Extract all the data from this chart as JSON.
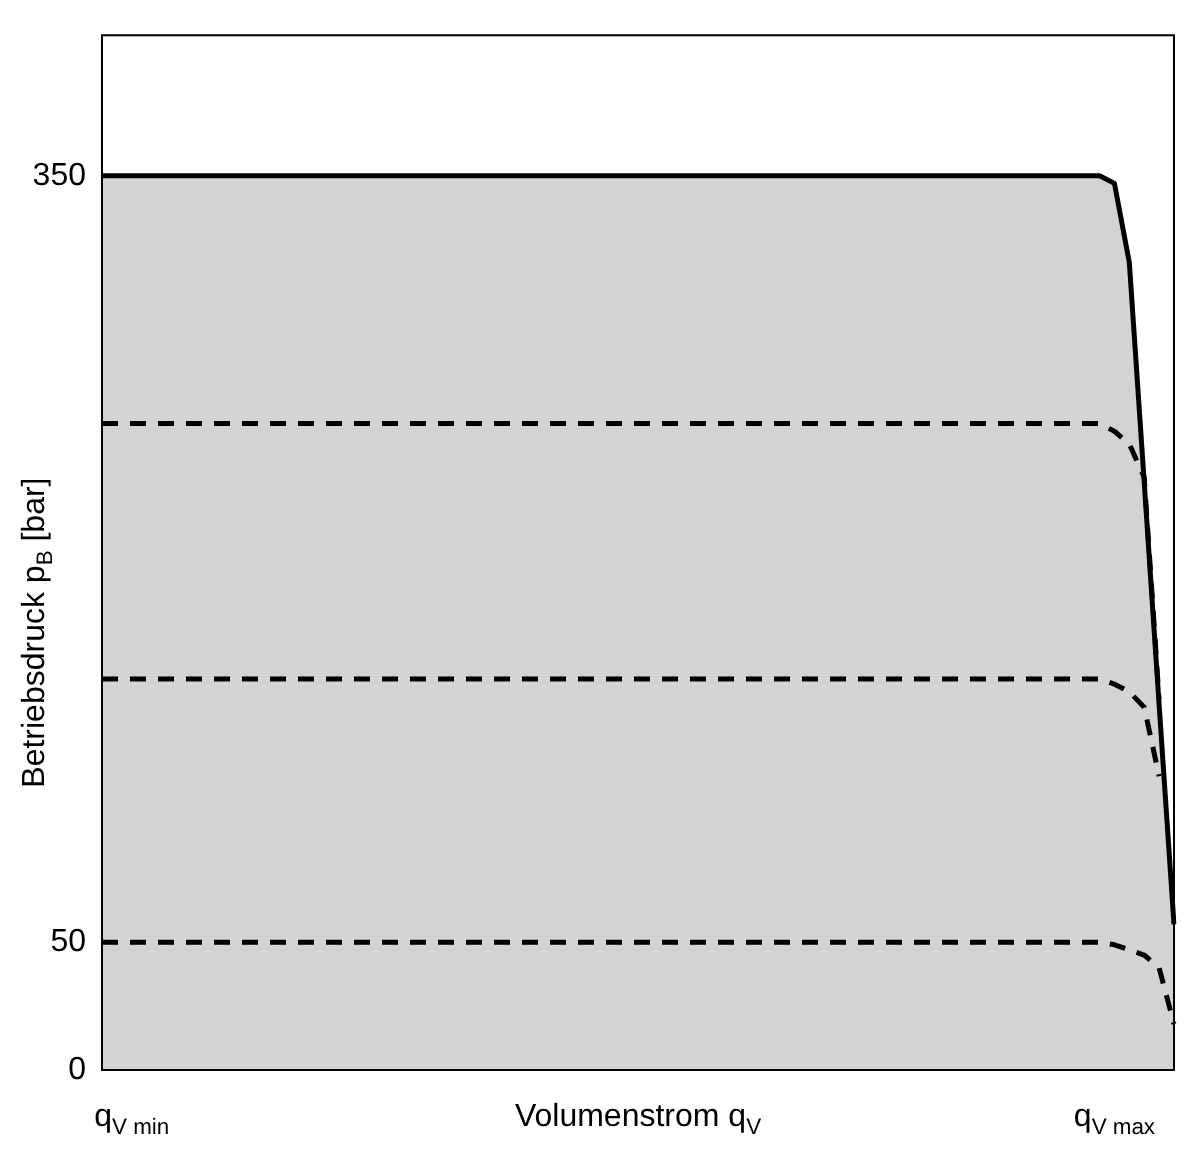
{
  "chart_data": {
    "type": "line",
    "xlabel": "Volumenstrom q$_{V}$",
    "ylabel": "Betriebsdruck p$_{B}$ [bar]",
    "categories": [
      null,
      null,
      "q$_{V min}$",
      null,
      null,
      null,
      null,
      null,
      null,
      null,
      null,
      null,
      null,
      null,
      null,
      null,
      null,
      null,
      null,
      null,
      null,
      null,
      null,
      null,
      null,
      null,
      null,
      null,
      null,
      null,
      null,
      null,
      null,
      null,
      null,
      null,
      null,
      null,
      null,
      null,
      null,
      null,
      null,
      null,
      null,
      null,
      null,
      null,
      null,
      null,
      null,
      null,
      null,
      null,
      null,
      null,
      null,
      null,
      null,
      null,
      null,
      null,
      null,
      null,
      null,
      null,
      null,
      null,
      "q$_{V max}$",
      null,
      null,
      null,
      null
    ],
    "ylim": [
      0,
      405
    ],
    "yticks": [
      0,
      50,
      350
    ],
    "grid": false,
    "legend": false,
    "marker": "none",
    "series": [
      {
        "type": "area",
        "color": "#d1d3d4",
        "values": [
          350,
          350,
          350,
          350,
          350,
          350,
          350,
          350,
          350,
          350,
          350,
          350,
          350,
          350,
          350,
          350,
          350,
          350,
          350,
          350,
          350,
          350,
          350,
          350,
          350,
          350,
          350,
          350,
          350,
          350,
          350,
          350,
          350,
          350,
          350,
          350,
          350,
          350,
          350,
          350,
          350,
          350,
          350,
          350,
          350,
          350,
          350,
          350,
          350,
          350,
          350,
          350,
          350,
          350,
          350,
          350,
          350,
          350,
          350,
          350,
          350,
          350,
          350,
          350,
          350,
          350,
          350,
          350,
          347,
          316,
          230,
          143,
          57
        ]
      },
      {
        "type": "line",
        "color": "#000000",
        "line_style": "dashed",
        "values": [
          253,
          253,
          253,
          253,
          253,
          253,
          253,
          253,
          253,
          253,
          253,
          253,
          253,
          253,
          253,
          253,
          253,
          253,
          253,
          253,
          253,
          253,
          253,
          253,
          253,
          253,
          253,
          253,
          253,
          253,
          253,
          253,
          253,
          253,
          253,
          253,
          253,
          253,
          253,
          253,
          253,
          253,
          253,
          253,
          253,
          253,
          253,
          253,
          253,
          253,
          253,
          253,
          253,
          253,
          253,
          253,
          253,
          253,
          253,
          253,
          253,
          253,
          253,
          253,
          253,
          253,
          253,
          253,
          250,
          245,
          232,
          145,
          null
        ]
      },
      {
        "type": "line",
        "color": "#000000",
        "line_style": "dashed",
        "values": [
          153,
          153,
          153,
          153,
          153,
          153,
          153,
          153,
          153,
          153,
          153,
          153,
          153,
          153,
          153,
          153,
          153,
          153,
          153,
          153,
          153,
          153,
          153,
          153,
          153,
          153,
          153,
          153,
          153,
          153,
          153,
          153,
          153,
          153,
          153,
          153,
          153,
          153,
          153,
          153,
          153,
          153,
          153,
          153,
          153,
          153,
          153,
          153,
          153,
          153,
          153,
          153,
          153,
          153,
          153,
          153,
          153,
          153,
          153,
          153,
          153,
          153,
          153,
          153,
          153,
          153,
          153,
          153,
          151,
          148,
          142,
          115,
          null
        ]
      },
      {
        "type": "line",
        "color": "#000000",
        "line_style": "dashed",
        "values": [
          50,
          50,
          50,
          50,
          50,
          50,
          50,
          50,
          50,
          50,
          50,
          50,
          50,
          50,
          50,
          50,
          50,
          50,
          50,
          50,
          50,
          50,
          50,
          50,
          50,
          50,
          50,
          50,
          50,
          50,
          50,
          50,
          50,
          50,
          50,
          50,
          50,
          50,
          50,
          50,
          50,
          50,
          50,
          50,
          50,
          50,
          50,
          50,
          50,
          50,
          50,
          50,
          50,
          50,
          50,
          50,
          50,
          50,
          50,
          50,
          50,
          50,
          50,
          50,
          50,
          50,
          50,
          50,
          49,
          47,
          45,
          40,
          18
        ]
      }
    ]
  }
}
